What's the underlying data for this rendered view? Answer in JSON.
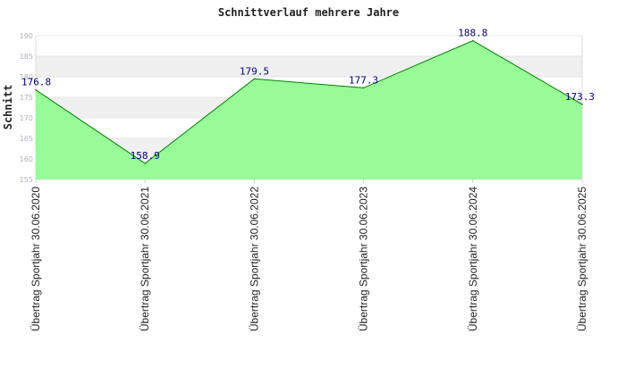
{
  "chart_data": {
    "type": "area",
    "title": "Schnittverlauf mehrere Jahre",
    "xlabel": "",
    "ylabel": "Schnitt",
    "categories": [
      "Übertrag Sportjahr 30.06.2020",
      "Übertrag Sportjahr 30.06.2021",
      "Übertrag Sportjahr 30.06.2022",
      "Übertrag Sportjahr 30.06.2023",
      "Übertrag Sportjahr 30.06.2024",
      "Übertrag Sportjahr 30.06.2025"
    ],
    "values": [
      176.8,
      158.9,
      179.5,
      177.3,
      188.8,
      173.3
    ],
    "value_labels": [
      "176.8",
      "158.9",
      "179.5",
      "177.3",
      "188.8",
      "173.3"
    ],
    "yticks": [
      155,
      160,
      165,
      170,
      175,
      180,
      185,
      190
    ],
    "ylim": [
      155,
      190
    ],
    "grid": true,
    "colors": {
      "fill": "#98fb98",
      "line": "#008000",
      "band": "#f0f0f0",
      "label": "#000080"
    }
  }
}
